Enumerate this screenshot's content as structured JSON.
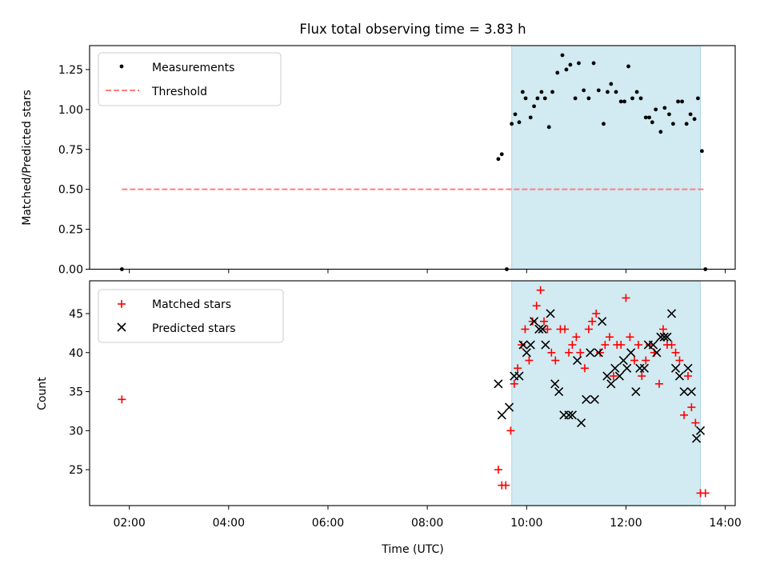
{
  "title": "Flux total observing time = 3.83 h",
  "chart_data": [
    {
      "type": "scatter",
      "panel": "top",
      "ylabel": "Matched/Predicted stars",
      "ylim": [
        0,
        1.4
      ],
      "xlim": [
        1.2,
        14.2
      ],
      "yticks": [
        0.0,
        0.25,
        0.5,
        0.75,
        1.0,
        1.25
      ],
      "ytick_labels": [
        "0.00",
        "0.25",
        "0.50",
        "0.75",
        "1.00",
        "1.25"
      ],
      "shade": {
        "x0": 9.7,
        "x1": 13.5,
        "color": "#add8e6"
      },
      "threshold": {
        "name": "Threshold",
        "y": 0.5,
        "x0": 1.85,
        "x1": 13.6,
        "color": "#ff7f7f"
      },
      "legend": [
        "Measurements",
        "Threshold"
      ],
      "series": [
        {
          "name": "Measurements",
          "marker": "dot",
          "color": "#000000",
          "points": [
            [
              1.85,
              0.0
            ],
            [
              9.43,
              0.69
            ],
            [
              9.5,
              0.72
            ],
            [
              9.6,
              0.0
            ],
            [
              9.7,
              0.91
            ],
            [
              9.77,
              0.97
            ],
            [
              9.85,
              0.92
            ],
            [
              9.92,
              1.11
            ],
            [
              9.98,
              1.07
            ],
            [
              10.08,
              0.95
            ],
            [
              10.15,
              1.02
            ],
            [
              10.22,
              1.07
            ],
            [
              10.3,
              1.11
            ],
            [
              10.37,
              1.07
            ],
            [
              10.45,
              0.89
            ],
            [
              10.52,
              1.11
            ],
            [
              10.62,
              1.23
            ],
            [
              10.72,
              1.34
            ],
            [
              10.8,
              1.25
            ],
            [
              10.88,
              1.28
            ],
            [
              10.98,
              1.07
            ],
            [
              11.05,
              1.29
            ],
            [
              11.15,
              1.12
            ],
            [
              11.25,
              1.07
            ],
            [
              11.35,
              1.29
            ],
            [
              11.45,
              1.12
            ],
            [
              11.55,
              0.91
            ],
            [
              11.63,
              1.11
            ],
            [
              11.7,
              1.16
            ],
            [
              11.8,
              1.11
            ],
            [
              11.9,
              1.05
            ],
            [
              11.97,
              1.05
            ],
            [
              12.05,
              1.27
            ],
            [
              12.13,
              1.07
            ],
            [
              12.22,
              1.11
            ],
            [
              12.3,
              1.07
            ],
            [
              12.4,
              0.95
            ],
            [
              12.47,
              0.95
            ],
            [
              12.53,
              0.92
            ],
            [
              12.6,
              1.0
            ],
            [
              12.7,
              0.86
            ],
            [
              12.78,
              1.01
            ],
            [
              12.87,
              0.97
            ],
            [
              12.95,
              0.91
            ],
            [
              13.05,
              1.05
            ],
            [
              13.13,
              1.05
            ],
            [
              13.22,
              0.91
            ],
            [
              13.3,
              0.97
            ],
            [
              13.38,
              0.94
            ],
            [
              13.45,
              1.07
            ],
            [
              13.53,
              0.74
            ],
            [
              13.6,
              0.0
            ]
          ]
        }
      ]
    },
    {
      "type": "scatter",
      "panel": "bottom",
      "xlabel": "Time (UTC)",
      "ylabel": "Count",
      "ylim": [
        20.4,
        49.2
      ],
      "xlim": [
        1.2,
        14.2
      ],
      "yticks": [
        25,
        30,
        35,
        40,
        45
      ],
      "ytick_labels": [
        "25",
        "30",
        "35",
        "40",
        "45"
      ],
      "xticks": [
        2,
        4,
        6,
        8,
        10,
        12,
        14
      ],
      "xtick_labels": [
        "02:00",
        "04:00",
        "06:00",
        "08:00",
        "10:00",
        "12:00",
        "14:00"
      ],
      "shade": {
        "x0": 9.7,
        "x1": 13.5,
        "color": "#add8e6"
      },
      "legend": [
        "Matched stars",
        "Predicted stars"
      ],
      "series": [
        {
          "name": "Matched stars",
          "marker": "plus",
          "color": "#ff0000",
          "points": [
            [
              1.85,
              34
            ],
            [
              9.43,
              25
            ],
            [
              9.5,
              23
            ],
            [
              9.58,
              23
            ],
            [
              9.68,
              30
            ],
            [
              9.75,
              36
            ],
            [
              9.82,
              38
            ],
            [
              9.9,
              41
            ],
            [
              9.97,
              43
            ],
            [
              10.05,
              39
            ],
            [
              10.12,
              44
            ],
            [
              10.2,
              46
            ],
            [
              10.28,
              48
            ],
            [
              10.35,
              44
            ],
            [
              10.42,
              43
            ],
            [
              10.5,
              40
            ],
            [
              10.58,
              39
            ],
            [
              10.68,
              43
            ],
            [
              10.77,
              43
            ],
            [
              10.85,
              40
            ],
            [
              10.92,
              41
            ],
            [
              11.0,
              42
            ],
            [
              11.08,
              40
            ],
            [
              11.17,
              38
            ],
            [
              11.25,
              43
            ],
            [
              11.32,
              44
            ],
            [
              11.4,
              45
            ],
            [
              11.48,
              40
            ],
            [
              11.58,
              41
            ],
            [
              11.67,
              42
            ],
            [
              11.75,
              37
            ],
            [
              11.82,
              41
            ],
            [
              11.9,
              41
            ],
            [
              12.0,
              47
            ],
            [
              12.08,
              42
            ],
            [
              12.17,
              39
            ],
            [
              12.25,
              41
            ],
            [
              12.32,
              37
            ],
            [
              12.4,
              39
            ],
            [
              12.48,
              41
            ],
            [
              12.57,
              40
            ],
            [
              12.67,
              36
            ],
            [
              12.75,
              43
            ],
            [
              12.83,
              41
            ],
            [
              12.92,
              41
            ],
            [
              13.0,
              40
            ],
            [
              13.08,
              39
            ],
            [
              13.17,
              32
            ],
            [
              13.25,
              37
            ],
            [
              13.32,
              33
            ],
            [
              13.4,
              31
            ],
            [
              13.5,
              22
            ],
            [
              13.6,
              22
            ]
          ]
        },
        {
          "name": "Predicted stars",
          "marker": "x",
          "color": "#000000",
          "points": [
            [
              9.43,
              36
            ],
            [
              9.5,
              32
            ],
            [
              9.65,
              33
            ],
            [
              9.75,
              37
            ],
            [
              9.85,
              37
            ],
            [
              9.93,
              41
            ],
            [
              10.0,
              40
            ],
            [
              10.08,
              41
            ],
            [
              10.15,
              44
            ],
            [
              10.25,
              43
            ],
            [
              10.32,
              43
            ],
            [
              10.38,
              41
            ],
            [
              10.48,
              45
            ],
            [
              10.57,
              36
            ],
            [
              10.65,
              35
            ],
            [
              10.75,
              32
            ],
            [
              10.85,
              32
            ],
            [
              10.92,
              32
            ],
            [
              11.02,
              39
            ],
            [
              11.1,
              31
            ],
            [
              11.2,
              34
            ],
            [
              11.28,
              40
            ],
            [
              11.37,
              34
            ],
            [
              11.45,
              40
            ],
            [
              11.52,
              44
            ],
            [
              11.62,
              37
            ],
            [
              11.7,
              36
            ],
            [
              11.78,
              38
            ],
            [
              11.87,
              37
            ],
            [
              11.95,
              39
            ],
            [
              12.02,
              38
            ],
            [
              12.1,
              40
            ],
            [
              12.2,
              35
            ],
            [
              12.28,
              38
            ],
            [
              12.37,
              38
            ],
            [
              12.45,
              41
            ],
            [
              12.55,
              41
            ],
            [
              12.62,
              40
            ],
            [
              12.7,
              42
            ],
            [
              12.77,
              42
            ],
            [
              12.83,
              42
            ],
            [
              12.92,
              45
            ],
            [
              13.0,
              38
            ],
            [
              13.08,
              37
            ],
            [
              13.17,
              35
            ],
            [
              13.25,
              38
            ],
            [
              13.32,
              35
            ],
            [
              13.42,
              29
            ],
            [
              13.5,
              30
            ]
          ]
        }
      ]
    }
  ]
}
